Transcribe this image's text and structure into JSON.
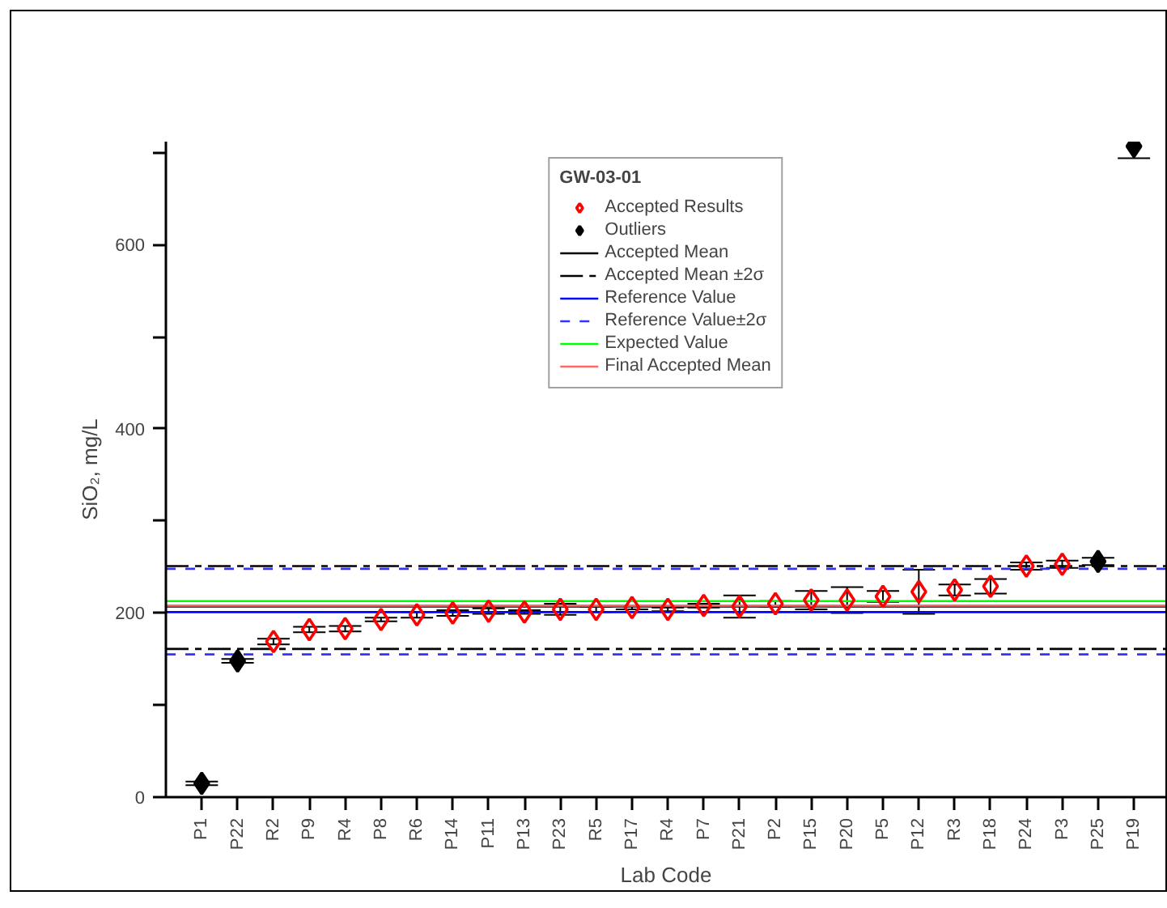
{
  "chart_data": {
    "type": "scatter",
    "xlabel": "Lab Code",
    "ylabel": "SiO₂, mg/L",
    "legend_title": "GW-03-01",
    "legend": "top",
    "marker": "diamond",
    "grid": false,
    "categories": [
      "P1",
      "P22",
      "R2",
      "P9",
      "R4",
      "P8",
      "R6",
      "P14",
      "P11",
      "P13",
      "P23",
      "R5",
      "P17",
      "R4",
      "P7",
      "P21",
      "P2",
      "P15",
      "P20",
      "P5",
      "P12",
      "R3",
      "P18",
      "P24",
      "P3",
      "P25",
      "P19"
    ],
    "ylim": [
      0,
      712
    ],
    "yticks": [
      0,
      {
        "value": 100,
        "label": null
      },
      200,
      {
        "value": 300,
        "label": null
      },
      400,
      {
        "value": 500,
        "label": null
      },
      600,
      {
        "value": 700,
        "label": null
      }
    ],
    "series": [
      {
        "name": "Accepted Results",
        "color": "#ff0000",
        "values": [
          null,
          null,
          169,
          182,
          183,
          193,
          198,
          200,
          202,
          201,
          204,
          204,
          206,
          204,
          208,
          207,
          210,
          214,
          214,
          218,
          223,
          225,
          229,
          251,
          253,
          null,
          null
        ],
        "errors": [
          null,
          null,
          3,
          3,
          3,
          2,
          3,
          3,
          3,
          2,
          6,
          3,
          2,
          2,
          2,
          12,
          3,
          10,
          14,
          6,
          24,
          6,
          8,
          4,
          4,
          null,
          null
        ]
      },
      {
        "name": "Outliers",
        "color": "#000000",
        "values": [
          15,
          148,
          null,
          null,
          null,
          null,
          null,
          null,
          null,
          null,
          null,
          null,
          null,
          null,
          null,
          null,
          null,
          null,
          null,
          null,
          null,
          null,
          null,
          null,
          null,
          256,
          707
        ],
        "errors": [
          2,
          2,
          null,
          null,
          null,
          null,
          null,
          null,
          null,
          null,
          null,
          null,
          null,
          null,
          null,
          null,
          null,
          null,
          null,
          null,
          null,
          null,
          null,
          null,
          null,
          4,
          13
        ]
      }
    ],
    "ref_lines": [
      {
        "axis": "y",
        "value": 207,
        "label": "Accepted Mean",
        "color": "#000000",
        "line_style": "solid"
      },
      {
        "axis": "y",
        "value": 251,
        "label": "Accepted Mean ±2σ",
        "color": "#000000",
        "line_style": "dashdot"
      },
      {
        "axis": "y",
        "value": 161,
        "color": "#000000",
        "line_style": "dashdot"
      },
      {
        "axis": "y",
        "value": 201,
        "label": "Reference Value",
        "color": "#0000ff",
        "line_style": "solid"
      },
      {
        "axis": "y",
        "value": 248,
        "label": "Reference Value±2σ",
        "color": "#3333ff",
        "line_style": "dashed"
      },
      {
        "axis": "y",
        "value": 155,
        "color": "#3333ff",
        "line_style": "dashed"
      },
      {
        "axis": "y",
        "value": 213,
        "label": "Expected Value",
        "color": "#00ff00",
        "line_style": "solid"
      },
      {
        "axis": "y",
        "value": 208,
        "label": "Final Accepted Mean",
        "color": "#ff6666",
        "line_style": "solid"
      }
    ]
  }
}
